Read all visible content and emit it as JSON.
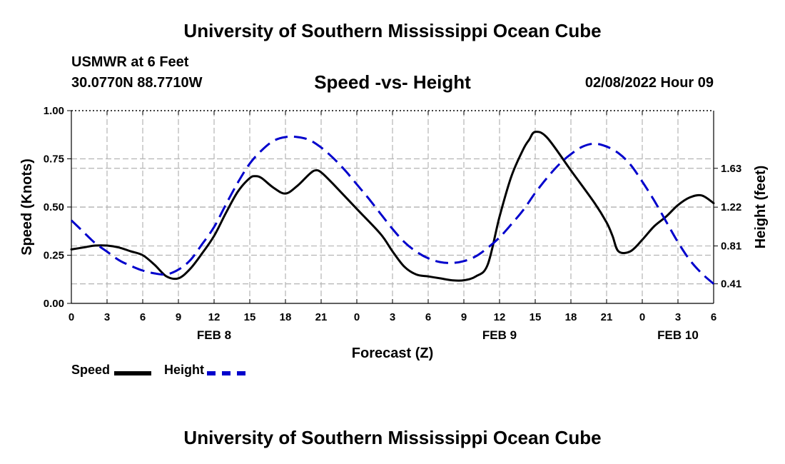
{
  "header": {
    "title": "University of Southern Mississippi Ocean Cube",
    "station": "USMWR at 6 Feet",
    "coordinates": "30.0770N  88.7710W",
    "subtitle": "Speed -vs- Height",
    "datetime": "02/08/2022 Hour 09"
  },
  "footer": {
    "title": "University of Southern Mississippi Ocean Cube"
  },
  "colors": {
    "speed": "#000000",
    "height": "#0000cc",
    "grid": "#b4b4b4"
  },
  "chart_data": {
    "type": "line",
    "title": "Speed -vs- Height",
    "xlabel": "Forecast (Z)",
    "ylabel_left": "Speed (Knots)",
    "ylabel_right": "Height (feet)",
    "x_range_hours": [
      0,
      54
    ],
    "ylim_left": [
      0,
      1.0
    ],
    "ylim_right": [
      0.2035,
      2.239
    ],
    "x_ticks": [
      {
        "h": 0,
        "label": "0"
      },
      {
        "h": 3,
        "label": "3"
      },
      {
        "h": 6,
        "label": "6"
      },
      {
        "h": 9,
        "label": "9"
      },
      {
        "h": 12,
        "label": "12"
      },
      {
        "h": 15,
        "label": "15"
      },
      {
        "h": 18,
        "label": "18"
      },
      {
        "h": 21,
        "label": "21"
      },
      {
        "h": 24,
        "label": "0"
      },
      {
        "h": 27,
        "label": "3"
      },
      {
        "h": 30,
        "label": "6"
      },
      {
        "h": 33,
        "label": "9"
      },
      {
        "h": 36,
        "label": "12"
      },
      {
        "h": 39,
        "label": "15"
      },
      {
        "h": 42,
        "label": "18"
      },
      {
        "h": 45,
        "label": "21"
      },
      {
        "h": 48,
        "label": "0"
      },
      {
        "h": 51,
        "label": "3"
      },
      {
        "h": 54,
        "label": "6"
      }
    ],
    "date_labels": [
      {
        "h": 12,
        "label": "FEB 8"
      },
      {
        "h": 36,
        "label": "FEB 9"
      },
      {
        "h": 51,
        "label": "FEB 10"
      }
    ],
    "y_left_ticks": [
      "0.00",
      "0.25",
      "0.50",
      "0.75",
      "1.00"
    ],
    "y_right_ticks": [
      "0.41",
      "0.81",
      "1.22",
      "1.63"
    ],
    "y_right_tick_values": [
      0.41,
      0.81,
      1.22,
      1.63
    ],
    "series": [
      {
        "name": "Speed",
        "axis": "left",
        "style": "solid",
        "x": [
          0,
          1,
          2,
          3,
          4,
          5,
          6,
          7,
          8,
          9,
          10,
          11,
          12,
          13,
          14,
          15,
          15.5,
          16,
          17,
          18,
          19,
          20,
          20.5,
          21,
          22,
          24,
          26,
          27,
          28,
          29,
          30,
          31,
          32,
          33,
          34,
          35,
          36,
          37,
          38,
          38.5,
          39,
          40,
          42,
          44,
          45,
          45.5,
          46,
          47,
          48,
          49,
          50,
          51,
          52,
          53,
          54
        ],
        "values": [
          0.28,
          0.29,
          0.3,
          0.3,
          0.29,
          0.27,
          0.25,
          0.2,
          0.14,
          0.13,
          0.18,
          0.26,
          0.35,
          0.47,
          0.58,
          0.65,
          0.66,
          0.65,
          0.6,
          0.57,
          0.61,
          0.67,
          0.69,
          0.68,
          0.62,
          0.49,
          0.36,
          0.27,
          0.19,
          0.15,
          0.14,
          0.13,
          0.12,
          0.12,
          0.14,
          0.2,
          0.45,
          0.66,
          0.8,
          0.85,
          0.89,
          0.86,
          0.69,
          0.52,
          0.42,
          0.35,
          0.27,
          0.27,
          0.33,
          0.4,
          0.45,
          0.51,
          0.55,
          0.56,
          0.52
        ]
      },
      {
        "name": "Height",
        "axis": "right",
        "style": "dashed",
        "x": [
          0,
          1,
          2,
          3,
          4,
          5,
          6,
          7,
          8,
          9,
          10,
          11,
          12,
          13,
          14,
          15,
          16,
          17,
          18,
          19,
          20,
          21,
          22,
          23,
          24,
          25,
          26,
          27,
          28,
          29,
          30,
          31,
          32,
          33,
          34,
          35,
          36,
          37,
          38,
          39,
          40,
          41,
          42,
          43,
          44,
          45,
          46,
          47,
          48,
          49,
          50,
          51,
          52,
          53,
          54
        ],
        "values": [
          1.08,
          0.96,
          0.84,
          0.75,
          0.66,
          0.6,
          0.55,
          0.52,
          0.51,
          0.56,
          0.66,
          0.83,
          1.01,
          1.25,
          1.48,
          1.68,
          1.82,
          1.92,
          1.96,
          1.96,
          1.93,
          1.85,
          1.74,
          1.61,
          1.46,
          1.31,
          1.15,
          0.99,
          0.85,
          0.75,
          0.68,
          0.64,
          0.63,
          0.65,
          0.7,
          0.79,
          0.9,
          1.04,
          1.19,
          1.37,
          1.53,
          1.67,
          1.78,
          1.86,
          1.89,
          1.86,
          1.79,
          1.67,
          1.49,
          1.29,
          1.07,
          0.85,
          0.66,
          0.52,
          0.41
        ]
      }
    ]
  }
}
